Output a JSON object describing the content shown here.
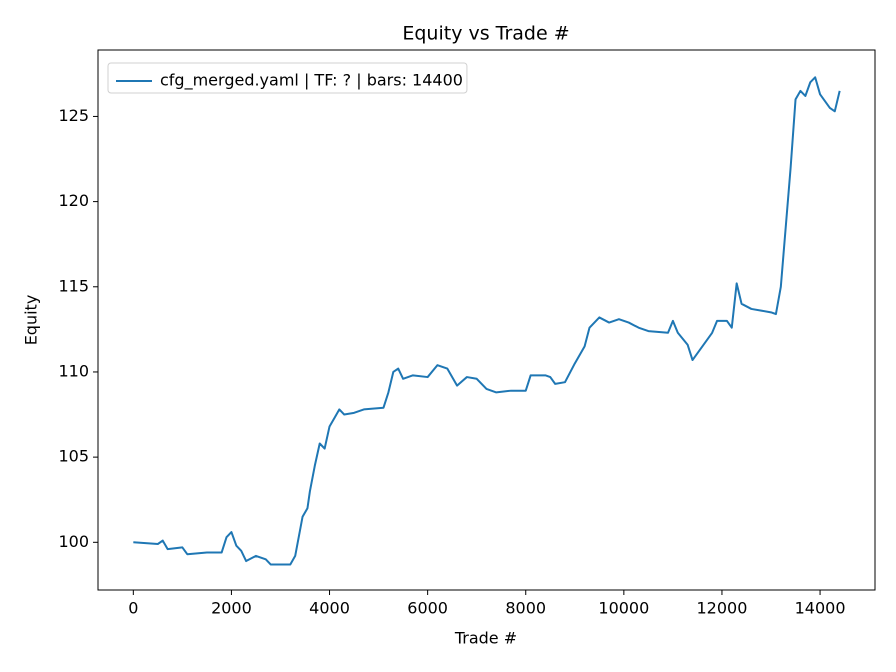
{
  "chart_data": {
    "type": "line",
    "title": "Equity vs Trade #",
    "xlabel": "Trade #",
    "ylabel": "Equity",
    "x": [
      0,
      500,
      600,
      700,
      1000,
      1100,
      1500,
      1800,
      1900,
      2000,
      2100,
      2200,
      2300,
      2500,
      2700,
      2800,
      3200,
      3300,
      3450,
      3550,
      3600,
      3700,
      3800,
      3900,
      4000,
      4100,
      4200,
      4300,
      4500,
      4700,
      5100,
      5200,
      5300,
      5400,
      5500,
      5700,
      6000,
      6200,
      6400,
      6600,
      6800,
      7000,
      7200,
      7400,
      7700,
      8000,
      8100,
      8400,
      8500,
      8600,
      8800,
      9000,
      9200,
      9300,
      9500,
      9700,
      9900,
      10100,
      10300,
      10500,
      10900,
      11000,
      11100,
      11300,
      11400,
      11600,
      11800,
      11900,
      12100,
      12200,
      12300,
      12400,
      12600,
      12800,
      13000,
      13100,
      13200,
      13300,
      13400,
      13500,
      13600,
      13700,
      13800,
      13900,
      14000,
      14200,
      14300,
      14400
    ],
    "series": [
      {
        "name": "cfg_merged.yaml | TF: ? | bars: 14400",
        "color": "#1f77b4",
        "values": [
          100.0,
          99.9,
          100.1,
          99.6,
          99.7,
          99.3,
          99.4,
          99.4,
          100.3,
          100.6,
          99.8,
          99.5,
          98.9,
          99.2,
          99.0,
          98.7,
          98.7,
          99.2,
          101.5,
          102.0,
          103.0,
          104.5,
          105.8,
          105.5,
          106.8,
          107.3,
          107.8,
          107.5,
          107.6,
          107.8,
          107.9,
          108.8,
          110.0,
          110.2,
          109.6,
          109.8,
          109.7,
          110.4,
          110.2,
          109.2,
          109.7,
          109.6,
          109.0,
          108.8,
          108.9,
          108.9,
          109.8,
          109.8,
          109.7,
          109.3,
          109.4,
          110.5,
          111.5,
          112.6,
          113.2,
          112.9,
          113.1,
          112.9,
          112.6,
          112.4,
          112.3,
          113.0,
          112.3,
          111.6,
          110.7,
          111.5,
          112.3,
          113.0,
          113.0,
          112.6,
          115.2,
          114.0,
          113.7,
          113.6,
          113.5,
          113.4,
          115.0,
          118.5,
          122.0,
          126.0,
          126.5,
          126.2,
          127.0,
          127.3,
          126.3,
          125.5,
          125.3,
          126.5
        ]
      }
    ],
    "xlim": [
      -720,
      15120
    ],
    "ylim": [
      97.2,
      128.9
    ],
    "xticks": [
      0,
      2000,
      4000,
      6000,
      8000,
      10000,
      12000,
      14000
    ],
    "yticks": [
      100,
      105,
      110,
      115,
      120,
      125
    ],
    "grid": false,
    "legend": "upper left"
  }
}
